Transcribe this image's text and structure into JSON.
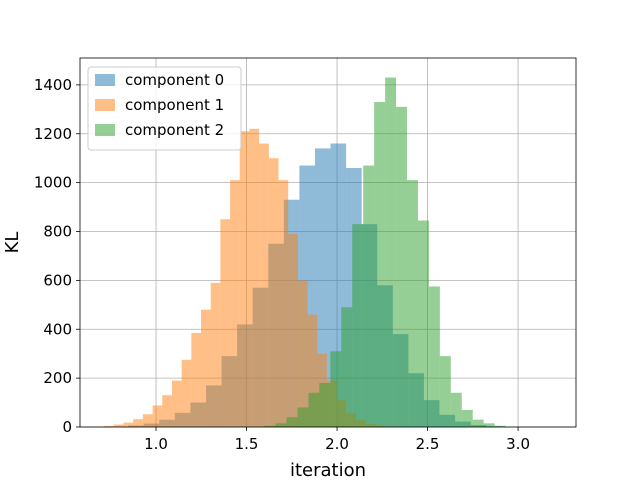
{
  "chart_data": {
    "type": "histogram",
    "xlabel": "iteration",
    "ylabel": "KL",
    "xlim": [
      0.58,
      3.32
    ],
    "ylim": [
      0,
      1510
    ],
    "xticks": [
      "1.0",
      "1.5",
      "2.0",
      "2.5",
      "3.0"
    ],
    "xtick_values": [
      1.0,
      1.5,
      2.0,
      2.5,
      3.0
    ],
    "yticks": [
      "0",
      "200",
      "400",
      "600",
      "800",
      "1000",
      "1200",
      "1400"
    ],
    "ytick_values": [
      0,
      200,
      400,
      600,
      800,
      1000,
      1200,
      1400
    ],
    "grid": true,
    "legend_position": "upper-left",
    "series": [
      {
        "name": "component 0",
        "color": "#1f77b4",
        "bin_start": 0.76,
        "bin_width": 0.086,
        "counts": [
          2,
          6,
          14,
          30,
          58,
          100,
          170,
          290,
          420,
          570,
          750,
          930,
          1070,
          1140,
          1160,
          1060,
          830,
          580,
          380,
          220,
          110,
          50,
          22,
          8,
          3
        ]
      },
      {
        "name": "component 1",
        "color": "#ff7f0e",
        "bin_start": 0.66,
        "bin_width": 0.0535,
        "counts": [
          2,
          4,
          10,
          18,
          32,
          52,
          88,
          130,
          190,
          275,
          385,
          480,
          590,
          850,
          1010,
          1210,
          1220,
          1160,
          1100,
          1010,
          790,
          600,
          460,
          300,
          190,
          110,
          58,
          28,
          12,
          5,
          2
        ]
      },
      {
        "name": "component 2",
        "color": "#2ca02c",
        "bin_start": 1.6,
        "bin_width": 0.0605,
        "counts": [
          5,
          15,
          40,
          80,
          140,
          180,
          310,
          490,
          830,
          1070,
          1330,
          1430,
          1310,
          1010,
          845,
          575,
          290,
          140,
          70,
          30,
          15,
          5
        ]
      }
    ]
  }
}
